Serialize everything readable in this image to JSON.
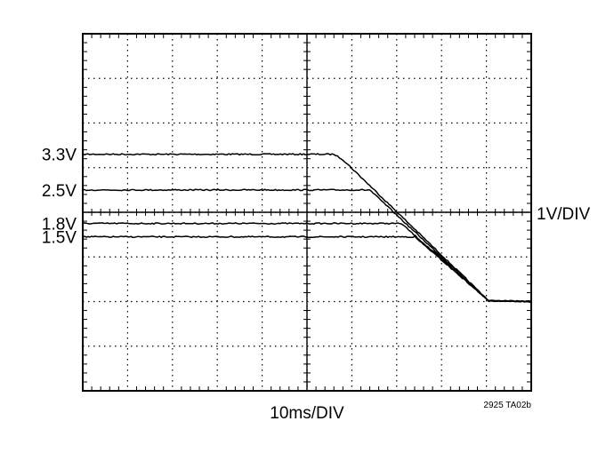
{
  "chart_data": {
    "type": "line",
    "title": "",
    "xlabel": "10ms/DIV",
    "ylabel": "1V/DIV",
    "figure_code": "2925 TA02b",
    "grid": true,
    "x_divisions": 10,
    "y_divisions": 8,
    "xlim": [
      0,
      10
    ],
    "ylim": [
      0,
      8
    ],
    "x_unit": "div (10ms/div)",
    "y_unit": "div (1V/div)",
    "series": [
      {
        "name": "3.3V",
        "color": "#000000",
        "points": [
          [
            0,
            5.3
          ],
          [
            5.6,
            5.3
          ],
          [
            5.8,
            5.18
          ],
          [
            9.05,
            2.02
          ],
          [
            10,
            2.0
          ]
        ]
      },
      {
        "name": "2.5V",
        "color": "#000000",
        "points": [
          [
            0,
            4.5
          ],
          [
            6.4,
            4.5
          ],
          [
            9.05,
            2.02
          ],
          [
            10,
            2.0
          ]
        ]
      },
      {
        "name": "1.8V",
        "color": "#000000",
        "points": [
          [
            0,
            3.75
          ],
          [
            7.1,
            3.75
          ],
          [
            9.05,
            2.02
          ],
          [
            10,
            2.0
          ]
        ]
      },
      {
        "name": "1.5V",
        "color": "#000000",
        "points": [
          [
            0,
            3.45
          ],
          [
            7.4,
            3.45
          ],
          [
            9.05,
            2.02
          ],
          [
            10,
            2.0
          ]
        ]
      }
    ]
  }
}
